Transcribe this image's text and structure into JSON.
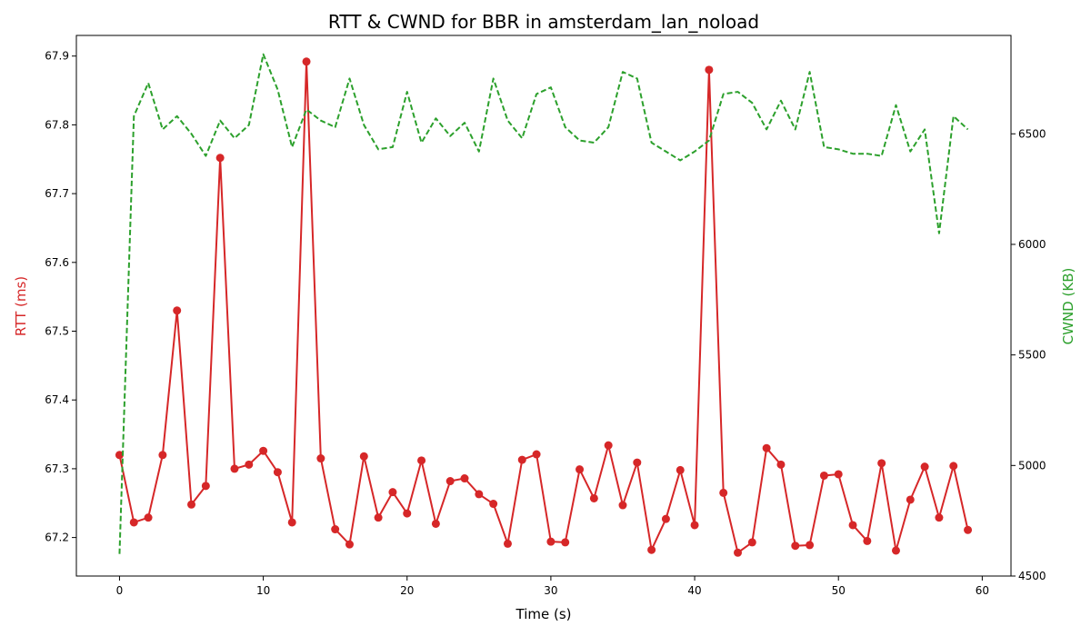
{
  "chart_data": {
    "type": "line",
    "title": "RTT & CWND for BBR in amsterdam_lan_noload",
    "xlabel": "Time (s)",
    "ylabel": "RTT (ms)",
    "y2label": "CWND (KB)",
    "xlim": [
      -3,
      62
    ],
    "ylim": [
      67.144,
      67.93
    ],
    "y2lim": [
      4500,
      6945
    ],
    "x_ticks": [
      0,
      10,
      20,
      30,
      40,
      50,
      60
    ],
    "y_ticks": [
      67.2,
      67.3,
      67.4,
      67.5,
      67.6,
      67.7,
      67.8,
      67.9
    ],
    "y2_ticks": [
      4500,
      5000,
      5500,
      6000,
      6500
    ],
    "x": [
      0,
      1,
      2,
      3,
      4,
      5,
      6,
      7,
      8,
      9,
      10,
      11,
      12,
      13,
      14,
      15,
      16,
      17,
      18,
      19,
      20,
      21,
      22,
      23,
      24,
      25,
      26,
      27,
      28,
      29,
      30,
      31,
      32,
      33,
      34,
      35,
      36,
      37,
      38,
      39,
      40,
      41,
      42,
      43,
      44,
      45,
      46,
      47,
      48,
      49,
      50,
      51,
      52,
      53,
      54,
      55,
      56,
      57,
      58,
      59
    ],
    "series": [
      {
        "axis": "left",
        "color": "#d62728",
        "style": "solid",
        "marker": "circle",
        "values": [
          67.32,
          67.222,
          67.229,
          67.32,
          67.53,
          67.248,
          67.275,
          67.752,
          67.3,
          67.306,
          67.326,
          67.295,
          67.222,
          67.892,
          67.315,
          67.212,
          67.19,
          67.318,
          67.229,
          67.266,
          67.235,
          67.312,
          67.22,
          67.282,
          67.286,
          67.263,
          67.249,
          67.191,
          67.313,
          67.321,
          67.194,
          67.193,
          67.299,
          67.257,
          67.334,
          67.247,
          67.309,
          67.182,
          67.227,
          67.298,
          67.218,
          67.88,
          67.265,
          67.178,
          67.193,
          67.33,
          67.306,
          67.188,
          67.189,
          67.29,
          67.292,
          67.218,
          67.195,
          67.308,
          67.181,
          67.255,
          67.303,
          67.229,
          67.304,
          67.211
        ]
      },
      {
        "axis": "right",
        "color": "#2ca02c",
        "style": "dashed",
        "marker": "none",
        "values": [
          4600,
          6580,
          6730,
          6520,
          6580,
          6500,
          6400,
          6560,
          6480,
          6540,
          6860,
          6700,
          6440,
          6610,
          6560,
          6530,
          6750,
          6540,
          6430,
          6440,
          6690,
          6460,
          6570,
          6490,
          6550,
          6420,
          6750,
          6560,
          6480,
          6680,
          6710,
          6530,
          6470,
          6460,
          6530,
          6780,
          6750,
          6460,
          6420,
          6380,
          6420,
          6470,
          6680,
          6690,
          6640,
          6520,
          6650,
          6520,
          6780,
          6440,
          6430,
          6410,
          6410,
          6400,
          6630,
          6420,
          6520,
          6050,
          6580,
          6520
        ]
      }
    ]
  }
}
